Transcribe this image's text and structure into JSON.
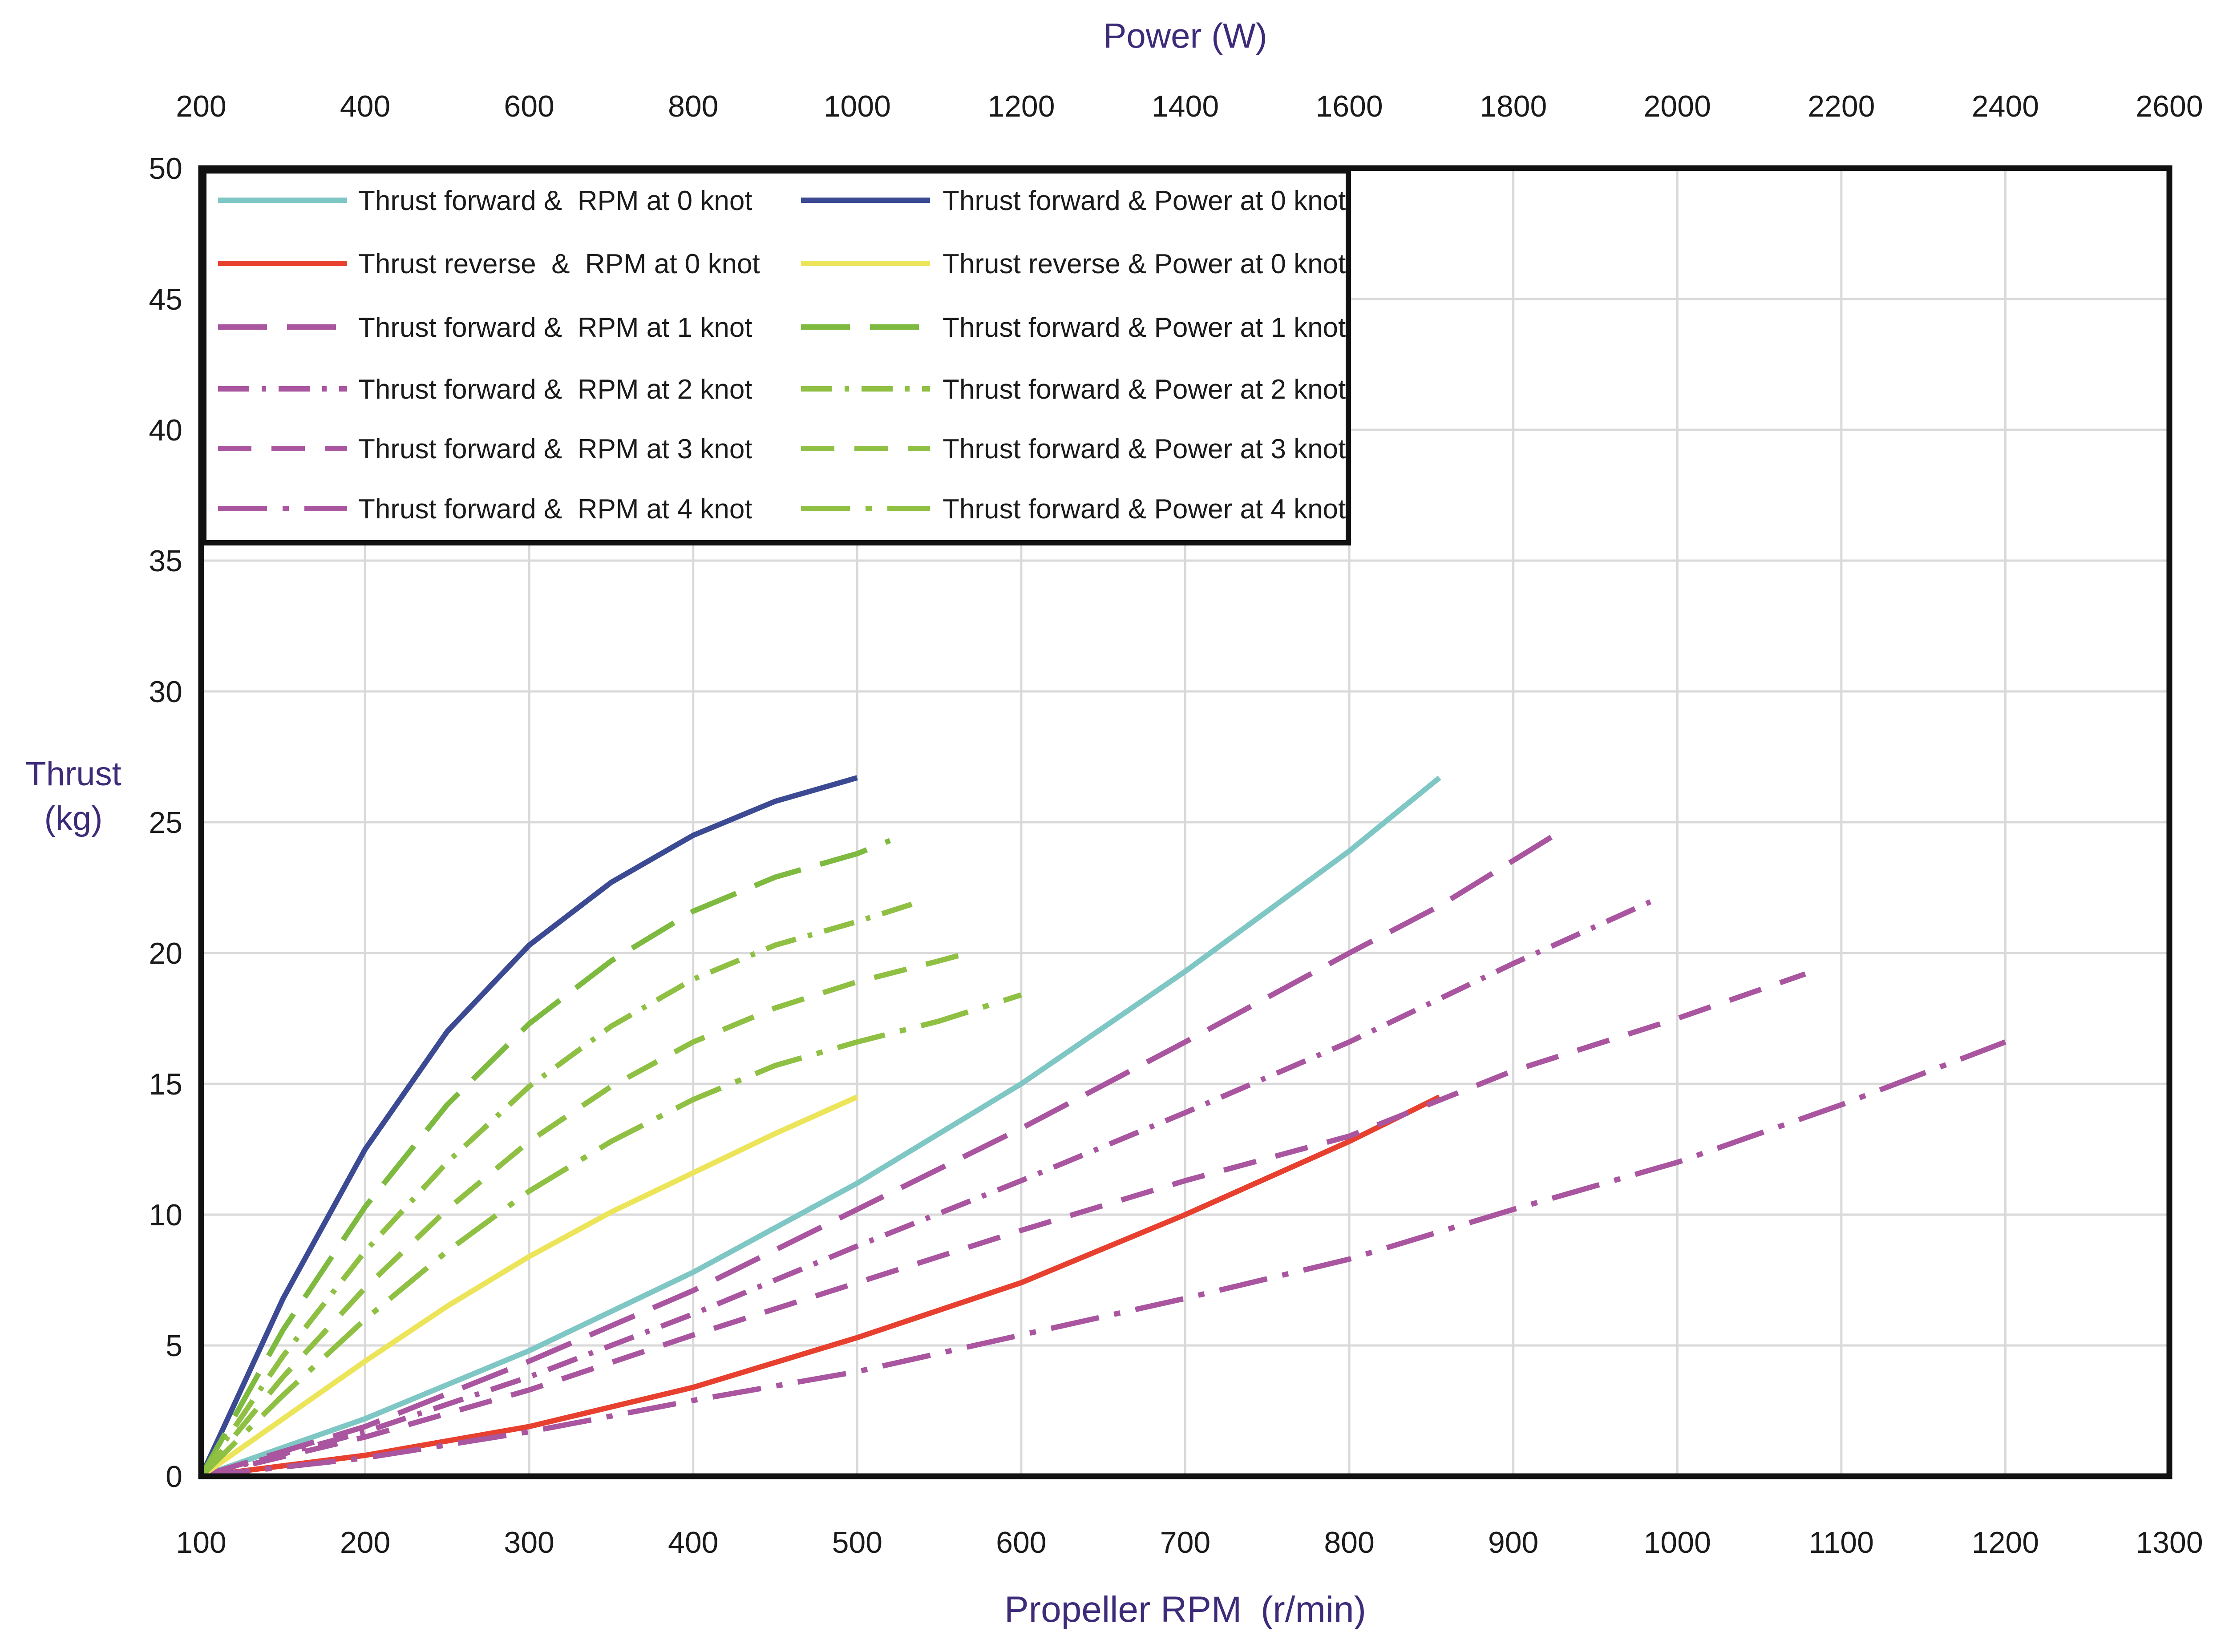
{
  "chart_data": {
    "type": "line",
    "title": "",
    "x_bottom": {
      "label": "Propeller RPM",
      "unit": "(r/min)",
      "range": [
        100,
        1300
      ],
      "ticks": [
        100,
        200,
        300,
        400,
        500,
        600,
        700,
        800,
        900,
        1000,
        1100,
        1200,
        1300
      ]
    },
    "x_top": {
      "label": "Power (W)",
      "range": [
        200,
        2600
      ],
      "ticks": [
        200,
        400,
        600,
        800,
        1000,
        1200,
        1400,
        1600,
        1800,
        2000,
        2200,
        2400,
        2600
      ]
    },
    "y": {
      "label_line1": "Thrust",
      "label_line2": "(kg)",
      "range": [
        0,
        50
      ],
      "ticks": [
        0,
        5,
        10,
        15,
        20,
        25,
        30,
        35,
        40,
        45,
        50
      ]
    },
    "grid": true,
    "legend_position": "top-left",
    "series": [
      {
        "name": "Thrust forward &  RPM at 0 knot",
        "axis": "rpm",
        "color": "#7fc7c4",
        "dash": "solid",
        "points": [
          [
            100,
            0
          ],
          [
            200,
            2.2
          ],
          [
            300,
            4.8
          ],
          [
            400,
            7.8
          ],
          [
            500,
            11.2
          ],
          [
            600,
            15.0
          ],
          [
            700,
            19.3
          ],
          [
            800,
            23.9
          ],
          [
            855,
            26.7
          ]
        ]
      },
      {
        "name": "Thrust reverse  &  RPM at 0 knot",
        "axis": "rpm",
        "color": "#e8402f",
        "dash": "solid",
        "points": [
          [
            100,
            0
          ],
          [
            200,
            0.8
          ],
          [
            300,
            1.9
          ],
          [
            400,
            3.4
          ],
          [
            500,
            5.3
          ],
          [
            600,
            7.4
          ],
          [
            700,
            10.0
          ],
          [
            800,
            12.8
          ],
          [
            855,
            14.5
          ]
        ]
      },
      {
        "name": "Thrust forward &  RPM at 1 knot",
        "axis": "rpm",
        "color": "#a9559f",
        "dash": "long",
        "points": [
          [
            100,
            0
          ],
          [
            200,
            1.9
          ],
          [
            300,
            4.4
          ],
          [
            400,
            7.1
          ],
          [
            500,
            10.2
          ],
          [
            600,
            13.3
          ],
          [
            700,
            16.6
          ],
          [
            800,
            20.0
          ],
          [
            855,
            21.8
          ],
          [
            925,
            24.5
          ]
        ]
      },
      {
        "name": "Thrust forward &  RPM at 2 knot",
        "axis": "rpm",
        "color": "#a9559f",
        "dash": "dashdot",
        "points": [
          [
            100,
            0
          ],
          [
            200,
            1.7
          ],
          [
            300,
            3.8
          ],
          [
            400,
            6.2
          ],
          [
            500,
            8.8
          ],
          [
            600,
            11.3
          ],
          [
            700,
            13.9
          ],
          [
            800,
            16.6
          ],
          [
            900,
            19.6
          ],
          [
            985,
            22.0
          ]
        ]
      },
      {
        "name": "Thrust forward &  RPM at 3 knot",
        "axis": "rpm",
        "color": "#a9559f",
        "dash": "medium",
        "points": [
          [
            100,
            0
          ],
          [
            200,
            1.5
          ],
          [
            300,
            3.3
          ],
          [
            400,
            5.4
          ],
          [
            500,
            7.4
          ],
          [
            600,
            9.4
          ],
          [
            700,
            11.3
          ],
          [
            800,
            13.0
          ],
          [
            900,
            15.5
          ],
          [
            1000,
            17.5
          ],
          [
            1078,
            19.2
          ]
        ]
      },
      {
        "name": "Thrust forward &  RPM at 4 knot",
        "axis": "rpm",
        "color": "#a9559f",
        "dash": "longdot",
        "points": [
          [
            100,
            0
          ],
          [
            200,
            0.7
          ],
          [
            300,
            1.7
          ],
          [
            400,
            2.9
          ],
          [
            500,
            4.0
          ],
          [
            600,
            5.4
          ],
          [
            700,
            6.8
          ],
          [
            800,
            8.3
          ],
          [
            900,
            10.2
          ],
          [
            1000,
            12.0
          ],
          [
            1100,
            14.2
          ],
          [
            1200,
            16.6
          ]
        ]
      },
      {
        "name": "Thrust forward & Power at 0 knot",
        "axis": "power",
        "color": "#3b4a93",
        "dash": "solid",
        "points": [
          [
            200,
            0
          ],
          [
            300,
            6.8
          ],
          [
            400,
            12.5
          ],
          [
            500,
            17.0
          ],
          [
            600,
            20.3
          ],
          [
            700,
            22.7
          ],
          [
            800,
            24.5
          ],
          [
            900,
            25.8
          ],
          [
            1000,
            26.7
          ]
        ]
      },
      {
        "name": "Thrust reverse & Power at 0 knot",
        "axis": "power",
        "color": "#ece55a",
        "dash": "solid",
        "points": [
          [
            200,
            0
          ],
          [
            300,
            2.2
          ],
          [
            400,
            4.4
          ],
          [
            500,
            6.5
          ],
          [
            600,
            8.4
          ],
          [
            700,
            10.1
          ],
          [
            800,
            11.6
          ],
          [
            900,
            13.1
          ],
          [
            1000,
            14.5
          ]
        ]
      },
      {
        "name": "Thrust forward & Power at 1 knot",
        "axis": "power",
        "color": "#7dba3f",
        "dash": "long",
        "points": [
          [
            200,
            0
          ],
          [
            300,
            5.6
          ],
          [
            400,
            10.3
          ],
          [
            500,
            14.2
          ],
          [
            600,
            17.3
          ],
          [
            700,
            19.7
          ],
          [
            800,
            21.6
          ],
          [
            900,
            22.9
          ],
          [
            1000,
            23.8
          ],
          [
            1040,
            24.3
          ]
        ]
      },
      {
        "name": "Thrust forward & Power at 2 knot",
        "axis": "power",
        "color": "#8fc043",
        "dash": "dashdot",
        "points": [
          [
            200,
            0
          ],
          [
            300,
            4.6
          ],
          [
            400,
            8.6
          ],
          [
            500,
            12.0
          ],
          [
            600,
            14.9
          ],
          [
            700,
            17.2
          ],
          [
            800,
            19.0
          ],
          [
            900,
            20.3
          ],
          [
            1000,
            21.2
          ],
          [
            1070,
            21.9
          ]
        ]
      },
      {
        "name": "Thrust forward & Power at 3 knot",
        "axis": "power",
        "color": "#8fc043",
        "dash": "medium",
        "points": [
          [
            200,
            0
          ],
          [
            300,
            3.8
          ],
          [
            400,
            7.2
          ],
          [
            500,
            10.2
          ],
          [
            600,
            12.8
          ],
          [
            700,
            14.9
          ],
          [
            800,
            16.6
          ],
          [
            900,
            17.9
          ],
          [
            1000,
            18.9
          ],
          [
            1100,
            19.7
          ],
          [
            1135,
            20.0
          ]
        ]
      },
      {
        "name": "Thrust forward & Power at 4 knot",
        "axis": "power",
        "color": "#8fc043",
        "dash": "longdot",
        "points": [
          [
            200,
            0
          ],
          [
            300,
            3.1
          ],
          [
            400,
            6.0
          ],
          [
            500,
            8.6
          ],
          [
            600,
            10.9
          ],
          [
            700,
            12.8
          ],
          [
            800,
            14.4
          ],
          [
            900,
            15.7
          ],
          [
            1000,
            16.6
          ],
          [
            1100,
            17.4
          ],
          [
            1200,
            18.4
          ]
        ]
      }
    ]
  }
}
